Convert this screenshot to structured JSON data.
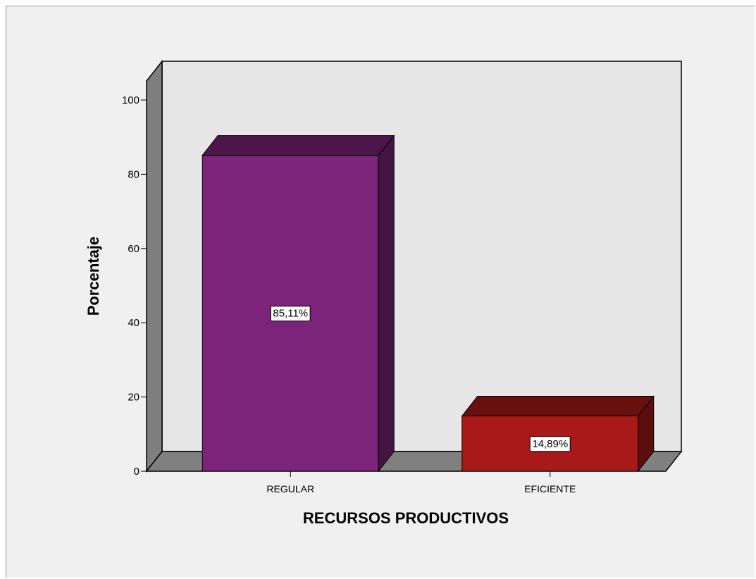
{
  "chart_data": {
    "type": "bar",
    "categories": [
      "REGULAR",
      "EFICIENTE"
    ],
    "values": [
      85.11,
      14.89
    ],
    "data_labels": [
      "85,11%",
      "14,89%"
    ],
    "bar_colors": [
      "#7b2479",
      "#a8191a"
    ],
    "xlabel": "RECURSOS PRODUCTIVOS",
    "ylabel": "Porcentaje",
    "ylim": [
      0,
      100
    ],
    "yticks": [
      0,
      20,
      40,
      60,
      80,
      100
    ],
    "style": "3d",
    "grid": false,
    "legend": "none"
  },
  "colors": {
    "background": "#f0f0f0",
    "back_wall": "#e6e6e6",
    "side_wall": "#7f7f7f",
    "floor": "#808080"
  }
}
